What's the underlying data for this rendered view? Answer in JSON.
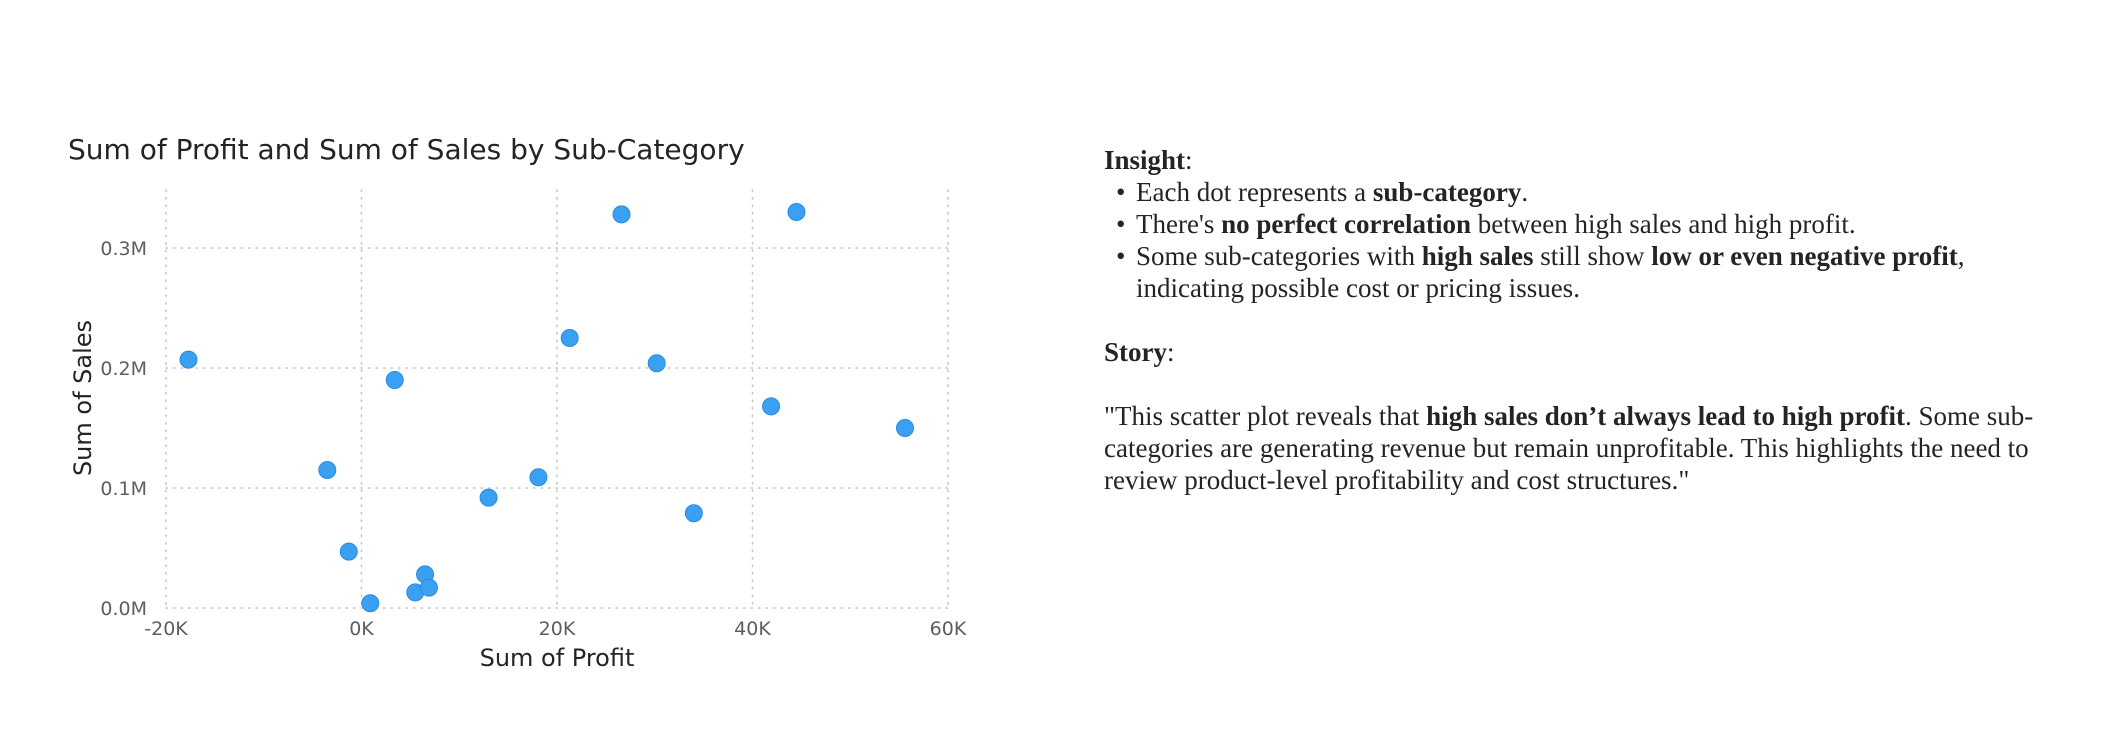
{
  "chart_data": {
    "type": "scatter",
    "title": "Sum of Profit and Sum of Sales by Sub-Category",
    "xlabel": "Sum of Profit",
    "ylabel": "Sum of Sales",
    "xlim": [
      -20000,
      60000
    ],
    "ylim": [
      0,
      350000
    ],
    "x_ticks": [
      -20000,
      0,
      20000,
      40000,
      60000
    ],
    "x_tick_labels": [
      "-20K",
      "0K",
      "20K",
      "40K",
      "60K"
    ],
    "y_ticks": [
      0,
      100000,
      200000,
      300000
    ],
    "y_tick_labels": [
      "0.0M",
      "0.1M",
      "0.2M",
      "0.3M"
    ],
    "grid": true,
    "point_color": "#3AA0F2",
    "points": [
      {
        "x": -17700,
        "y": 207000
      },
      {
        "x": -3500,
        "y": 115000
      },
      {
        "x": -1300,
        "y": 47000
      },
      {
        "x": 900,
        "y": 4000
      },
      {
        "x": 3400,
        "y": 190000
      },
      {
        "x": 5500,
        "y": 13000
      },
      {
        "x": 6500,
        "y": 28000
      },
      {
        "x": 6900,
        "y": 17000
      },
      {
        "x": 13000,
        "y": 92000
      },
      {
        "x": 18100,
        "y": 109000
      },
      {
        "x": 21300,
        "y": 225000
      },
      {
        "x": 26600,
        "y": 328000
      },
      {
        "x": 30200,
        "y": 204000
      },
      {
        "x": 34000,
        "y": 79000
      },
      {
        "x": 41900,
        "y": 168000
      },
      {
        "x": 44500,
        "y": 330000
      },
      {
        "x": 55600,
        "y": 150000
      }
    ]
  },
  "insight": {
    "heading": "Insight",
    "heading_suffix": ":",
    "bullets": [
      {
        "text_1": "Each dot represents a ",
        "bold_1": "sub-category",
        "text_2": "."
      },
      {
        "text_1": "There's ",
        "bold_1": "no perfect correlation",
        "text_2": " between high sales and high profit."
      },
      {
        "text_1": "Some sub-categories with ",
        "bold_1": "high sales",
        "text_2": " still show ",
        "bold_2": "low or even negative profit",
        "text_3": ", indicating possible cost or pricing issues."
      }
    ]
  },
  "story": {
    "heading": "Story",
    "heading_suffix": ":",
    "text_1": "\"This scatter plot reveals that ",
    "bold_1": "high sales don’t always lead to high profit",
    "text_2": ". Some sub-categories are generating revenue but remain unprofitable. This highlights the need to review product-level profitability and cost structures.\""
  }
}
